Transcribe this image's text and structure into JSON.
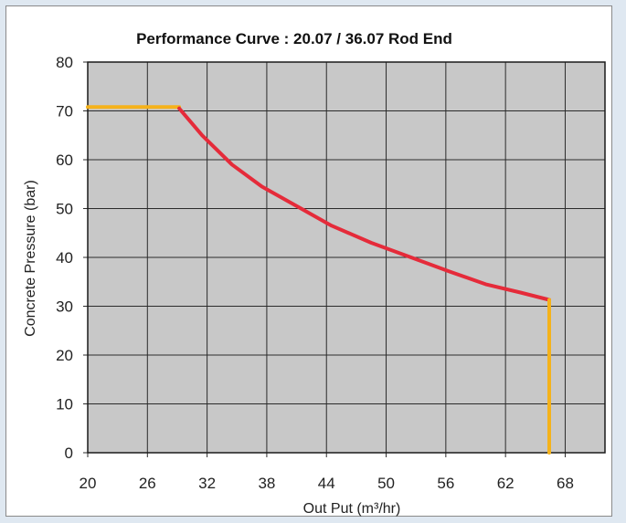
{
  "chart_data": {
    "type": "line",
    "title": "Performance Curve : 20.07 / 36.07 Rod End",
    "xlabel": "Out Put (m³/hr)",
    "ylabel": "Concrete Pressure (bar)",
    "xlim": [
      20,
      72
    ],
    "ylim": [
      0,
      80
    ],
    "x_ticks": [
      "20",
      "26",
      "32",
      "38",
      "44",
      "50",
      "56",
      "62",
      "68"
    ],
    "y_ticks": [
      "0",
      "10",
      "20",
      "30",
      "40",
      "50",
      "60",
      "70",
      "80"
    ],
    "x_tick_values": [
      20,
      26,
      32,
      38,
      44,
      50,
      56,
      62,
      68
    ],
    "y_tick_values": [
      0,
      10,
      20,
      30,
      40,
      50,
      60,
      70,
      80
    ],
    "grid": true,
    "legend": "none",
    "plot_background": "#c8c8c8",
    "series": [
      {
        "color": "#f5b21a",
        "points": [
          [
            20,
            70.8
          ],
          [
            29.2,
            70.8
          ]
        ]
      },
      {
        "color": "#e52b3a",
        "points": [
          [
            29.2,
            70.5
          ],
          [
            31.5,
            65
          ],
          [
            34.5,
            59
          ],
          [
            37.5,
            54.5
          ],
          [
            41,
            50.5
          ],
          [
            44.5,
            46.5
          ],
          [
            48.5,
            43
          ],
          [
            52.5,
            40
          ],
          [
            56.5,
            37
          ],
          [
            60,
            34.5
          ],
          [
            63.5,
            32.8
          ],
          [
            66.4,
            31.3
          ]
        ]
      },
      {
        "color": "#f5b21a",
        "points": [
          [
            66.4,
            31.3
          ],
          [
            66.4,
            0
          ]
        ]
      }
    ]
  }
}
